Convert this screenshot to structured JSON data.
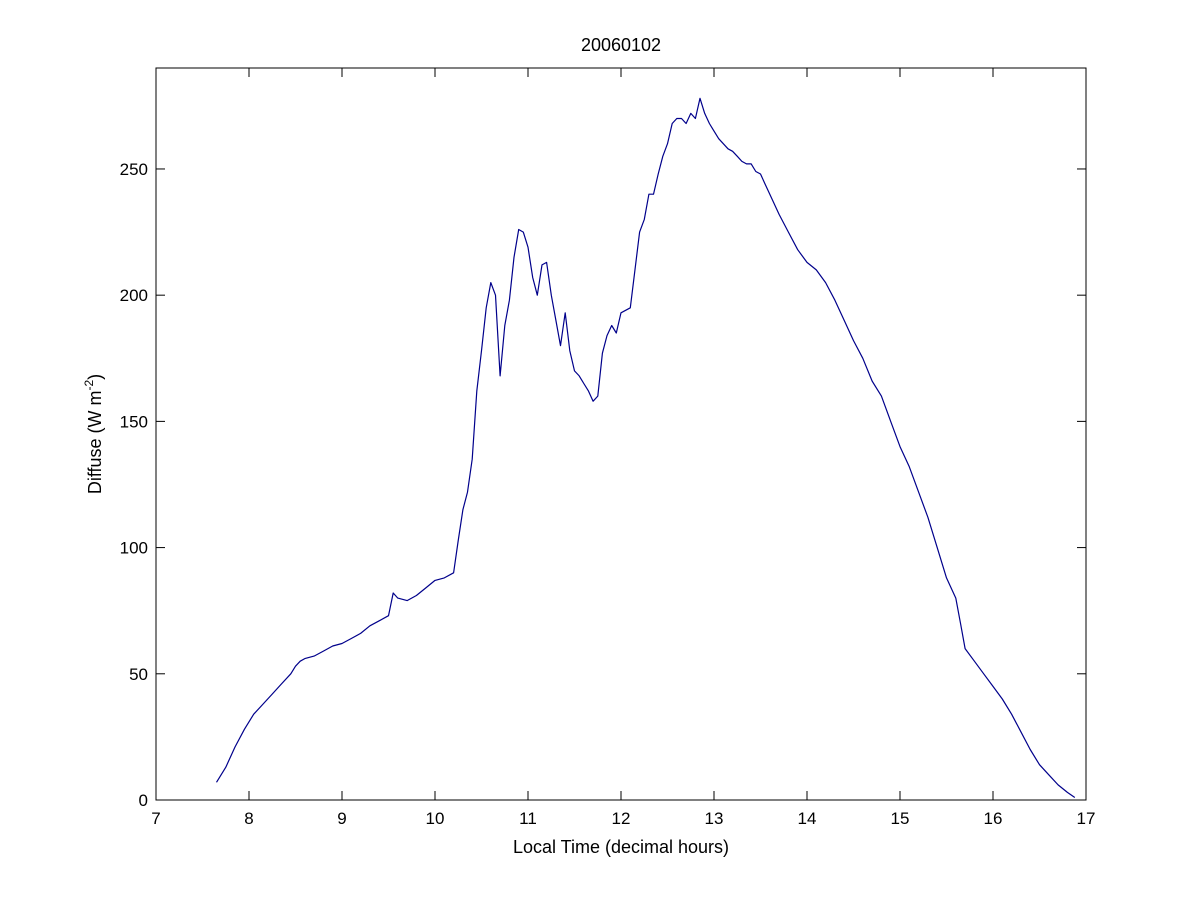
{
  "chart_data": {
    "type": "line",
    "title": "20060102",
    "xlabel": "Local Time (decimal hours)",
    "ylabel": {
      "base": "Diffuse (W m",
      "superscript": "-2",
      "suffix": ")"
    },
    "xlim": [
      7,
      17
    ],
    "ylim": [
      0,
      290
    ],
    "xticks": [
      7,
      8,
      9,
      10,
      11,
      12,
      13,
      14,
      15,
      16,
      17
    ],
    "yticks": [
      0,
      50,
      100,
      150,
      200,
      250
    ],
    "grid": false,
    "legend": "none",
    "line_color": "#00008b",
    "series": [
      {
        "x": [
          7.65,
          7.75,
          7.85,
          7.95,
          8.05,
          8.15,
          8.25,
          8.35,
          8.45,
          8.5,
          8.55,
          8.6,
          8.7,
          8.8,
          8.9,
          9.0,
          9.1,
          9.2,
          9.3,
          9.4,
          9.5,
          9.55,
          9.6,
          9.7,
          9.8,
          9.9,
          10.0,
          10.1,
          10.2,
          10.25,
          10.3,
          10.35,
          10.4,
          10.45,
          10.5,
          10.55,
          10.6,
          10.65,
          10.7,
          10.75,
          10.8,
          10.85,
          10.9,
          10.95,
          11.0,
          11.05,
          11.1,
          11.15,
          11.2,
          11.25,
          11.3,
          11.35,
          11.4,
          11.45,
          11.5,
          11.55,
          11.6,
          11.65,
          11.7,
          11.75,
          11.8,
          11.85,
          11.9,
          11.95,
          12.0,
          12.1,
          12.2,
          12.25,
          12.3,
          12.35,
          12.4,
          12.45,
          12.5,
          12.55,
          12.6,
          12.65,
          12.7,
          12.75,
          12.8,
          12.85,
          12.9,
          12.95,
          13.0,
          13.05,
          13.1,
          13.15,
          13.2,
          13.25,
          13.3,
          13.35,
          13.4,
          13.45,
          13.5,
          13.55,
          13.6,
          13.7,
          13.8,
          13.9,
          14.0,
          14.1,
          14.2,
          14.3,
          14.4,
          14.5,
          14.6,
          14.7,
          14.8,
          14.9,
          15.0,
          15.1,
          15.2,
          15.3,
          15.4,
          15.5,
          15.6,
          15.65,
          15.7,
          15.8,
          15.9,
          16.0,
          16.1,
          16.2,
          16.3,
          16.4,
          16.5,
          16.6,
          16.7,
          16.8,
          16.88
        ],
        "y": [
          7,
          13,
          21,
          28,
          34,
          38,
          42,
          46,
          50,
          53,
          55,
          56,
          57,
          59,
          61,
          62,
          64,
          66,
          69,
          71,
          73,
          82,
          80,
          79,
          81,
          84,
          87,
          88,
          90,
          103,
          115,
          122,
          135,
          162,
          178,
          195,
          205,
          200,
          168,
          188,
          198,
          215,
          226,
          225,
          219,
          207,
          200,
          212,
          213,
          200,
          190,
          180,
          193,
          178,
          170,
          168,
          165,
          162,
          158,
          160,
          177,
          184,
          188,
          185,
          193,
          195,
          225,
          230,
          240,
          240,
          248,
          255,
          260,
          268,
          270,
          270,
          268,
          272,
          270,
          278,
          272,
          268,
          265,
          262,
          260,
          258,
          257,
          255,
          253,
          252,
          252,
          249,
          248,
          244,
          240,
          232,
          225,
          218,
          213,
          210,
          205,
          198,
          190,
          182,
          175,
          166,
          160,
          150,
          140,
          132,
          122,
          112,
          100,
          88,
          80,
          70,
          60,
          55,
          50,
          45,
          40,
          34,
          27,
          20,
          14,
          10,
          6,
          3,
          1
        ]
      }
    ]
  }
}
